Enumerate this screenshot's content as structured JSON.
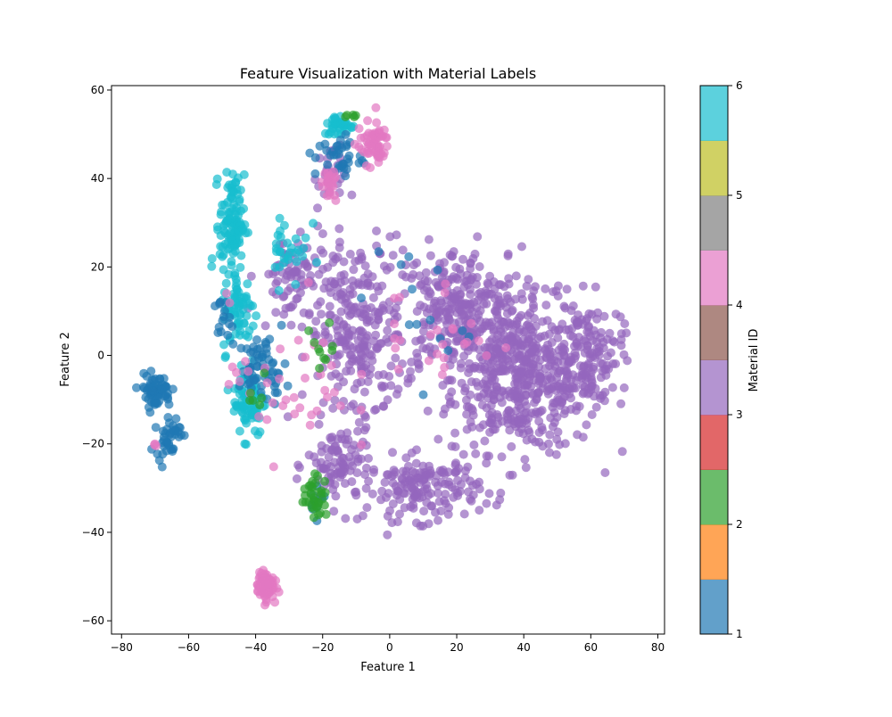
{
  "chart_data": {
    "type": "scatter",
    "title": "Feature Visualization with Material Labels",
    "xlabel": "Feature 1",
    "ylabel": "Feature 2",
    "xlim": [
      -83,
      82
    ],
    "ylim": [
      -63,
      61
    ],
    "xticks": [
      -80,
      -60,
      -40,
      -20,
      0,
      20,
      40,
      60,
      80
    ],
    "yticks": [
      -60,
      -40,
      -20,
      0,
      20,
      40,
      60
    ],
    "grid": false,
    "point_alpha": 0.7,
    "colorbar": {
      "label": "Material ID",
      "range": [
        1,
        6
      ],
      "ticks": [
        1,
        2,
        3,
        4,
        5,
        6
      ],
      "segment_colors": [
        "#1f77b4",
        "#ff7f0e",
        "#2ca02c",
        "#d62728",
        "#9467bd",
        "#8c564b",
        "#e377c2",
        "#7f7f7f",
        "#bcbd22",
        "#17becf"
      ]
    },
    "legend": "none",
    "clusters": [
      {
        "material": 3,
        "color": "#9467bd",
        "center": [
          40,
          -5
        ],
        "spread": [
          18,
          14
        ],
        "count": 520
      },
      {
        "material": 3,
        "color": "#9467bd",
        "center": [
          20,
          10
        ],
        "spread": [
          16,
          12
        ],
        "count": 300
      },
      {
        "material": 3,
        "color": "#9467bd",
        "center": [
          -10,
          5
        ],
        "spread": [
          12,
          18
        ],
        "count": 260
      },
      {
        "material": 3,
        "color": "#9467bd",
        "center": [
          10,
          -30
        ],
        "spread": [
          14,
          6
        ],
        "count": 160
      },
      {
        "material": 3,
        "color": "#9467bd",
        "center": [
          -15,
          -25
        ],
        "spread": [
          8,
          8
        ],
        "count": 90
      },
      {
        "material": 3,
        "color": "#9467bd",
        "center": [
          60,
          0
        ],
        "spread": [
          8,
          10
        ],
        "count": 120
      },
      {
        "material": 3,
        "color": "#9467bd",
        "center": [
          -30,
          18
        ],
        "spread": [
          8,
          8
        ],
        "count": 70
      },
      {
        "material": 3,
        "color": "#9467bd",
        "center": [
          -18,
          40
        ],
        "spread": [
          4,
          6
        ],
        "count": 25
      },
      {
        "material": 6,
        "color": "#17becf",
        "center": [
          -47,
          30
        ],
        "spread": [
          3,
          9
        ],
        "count": 110
      },
      {
        "material": 6,
        "color": "#17becf",
        "center": [
          -42,
          -10
        ],
        "spread": [
          4,
          7
        ],
        "count": 80
      },
      {
        "material": 6,
        "color": "#17becf",
        "center": [
          -45,
          10
        ],
        "spread": [
          4,
          8
        ],
        "count": 70
      },
      {
        "material": 6,
        "color": "#17becf",
        "center": [
          -15,
          52
        ],
        "spread": [
          4,
          2
        ],
        "count": 35
      },
      {
        "material": 6,
        "color": "#17becf",
        "center": [
          -30,
          25
        ],
        "spread": [
          5,
          8
        ],
        "count": 30
      },
      {
        "material": 1,
        "color": "#1f77b4",
        "center": [
          -70,
          -8
        ],
        "spread": [
          4,
          3
        ],
        "count": 70
      },
      {
        "material": 1,
        "color": "#1f77b4",
        "center": [
          -66,
          -18
        ],
        "spread": [
          3,
          4
        ],
        "count": 40
      },
      {
        "material": 1,
        "color": "#1f77b4",
        "center": [
          -38,
          -3
        ],
        "spread": [
          6,
          6
        ],
        "count": 60
      },
      {
        "material": 1,
        "color": "#1f77b4",
        "center": [
          -15,
          45
        ],
        "spread": [
          6,
          4
        ],
        "count": 35
      },
      {
        "material": 1,
        "color": "#1f77b4",
        "center": [
          -50,
          8
        ],
        "spread": [
          2,
          4
        ],
        "count": 15
      },
      {
        "material": 1,
        "color": "#1f77b4",
        "center": [
          -22,
          -32
        ],
        "spread": [
          2,
          4
        ],
        "count": 10
      },
      {
        "material": 1,
        "color": "#1f77b4",
        "center": [
          5,
          10
        ],
        "spread": [
          15,
          15
        ],
        "count": 15
      },
      {
        "material": 4,
        "color": "#e377c2",
        "center": [
          -37,
          -52
        ],
        "spread": [
          2,
          2.5
        ],
        "count": 120
      },
      {
        "material": 4,
        "color": "#e377c2",
        "center": [
          -5,
          48
        ],
        "spread": [
          4,
          4
        ],
        "count": 60
      },
      {
        "material": 4,
        "color": "#e377c2",
        "center": [
          -18,
          38
        ],
        "spread": [
          2,
          3
        ],
        "count": 25
      },
      {
        "material": 4,
        "color": "#e377c2",
        "center": [
          -30,
          -5
        ],
        "spread": [
          15,
          15
        ],
        "count": 40
      },
      {
        "material": 4,
        "color": "#e377c2",
        "center": [
          15,
          5
        ],
        "spread": [
          15,
          12
        ],
        "count": 25
      },
      {
        "material": 4,
        "color": "#e377c2",
        "center": [
          -70,
          -20
        ],
        "spread": [
          1,
          1
        ],
        "count": 3
      },
      {
        "material": 2,
        "color": "#2ca02c",
        "center": [
          -22,
          -32
        ],
        "spread": [
          3,
          4
        ],
        "count": 35
      },
      {
        "material": 2,
        "color": "#2ca02c",
        "center": [
          -20,
          2
        ],
        "spread": [
          5,
          4
        ],
        "count": 10
      },
      {
        "material": 2,
        "color": "#2ca02c",
        "center": [
          -12,
          54
        ],
        "spread": [
          2,
          1
        ],
        "count": 5
      },
      {
        "material": 2,
        "color": "#2ca02c",
        "center": [
          -40,
          -10
        ],
        "spread": [
          4,
          6
        ],
        "count": 6
      }
    ]
  }
}
